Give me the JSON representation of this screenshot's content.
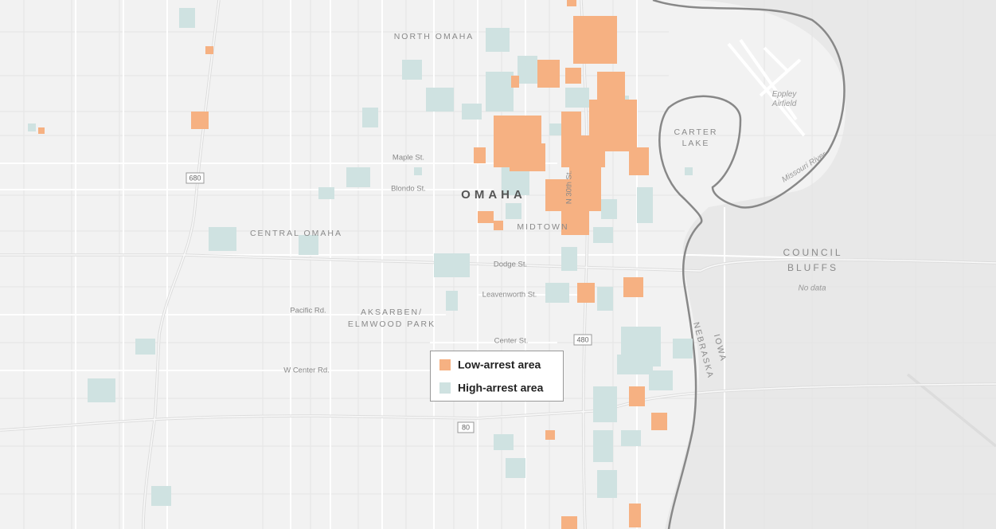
{
  "map": {
    "places": [
      "NORTH OMAHA",
      "OMAHA",
      "MIDTOWN",
      "CENTRAL OMAHA",
      [
        "AKSARBEN/",
        "ELMWOOD PARK"
      ],
      [
        "CARTER",
        "LAKE"
      ],
      [
        "COUNCIL",
        "BLUFFS"
      ]
    ],
    "streets": [
      "Maple St.",
      "Blondo St.",
      "N 30th St.",
      "Dodge St.",
      "Leavenworth St.",
      "Pacific Rd.",
      "Center St.",
      "W Center Rd."
    ],
    "highways": [
      "680",
      "480",
      "80"
    ],
    "airfield": [
      "Eppley",
      "Airfield"
    ],
    "water": "Missouri River",
    "no_data": "No data",
    "states": [
      "NEBRASKA",
      "IOWA"
    ],
    "legend": [
      {
        "label": "Low-arrest area",
        "color": "#f6b182"
      },
      {
        "label": "High-arrest area",
        "color": "#cfe2e1"
      }
    ]
  }
}
